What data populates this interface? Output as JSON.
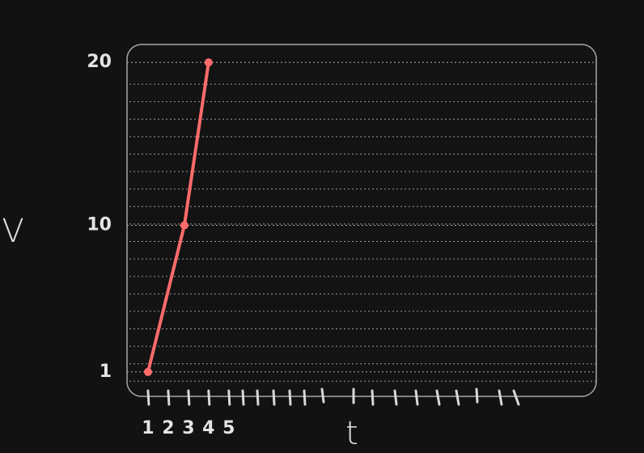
{
  "chart_data": {
    "type": "line",
    "x": [
      1,
      2.8,
      4.0
    ],
    "series": [
      {
        "color": "#ff6b6b",
        "values": [
          1,
          10,
          20
        ]
      }
    ],
    "xlabel": "t",
    "ylabel": "V",
    "xlim": [
      -0.04,
      23.2
    ],
    "ylim": [
      -0.5,
      21.1
    ],
    "xticks": [
      1,
      2,
      3,
      4,
      5
    ],
    "yticks": [
      1,
      10,
      20
    ],
    "grid": true
  }
}
